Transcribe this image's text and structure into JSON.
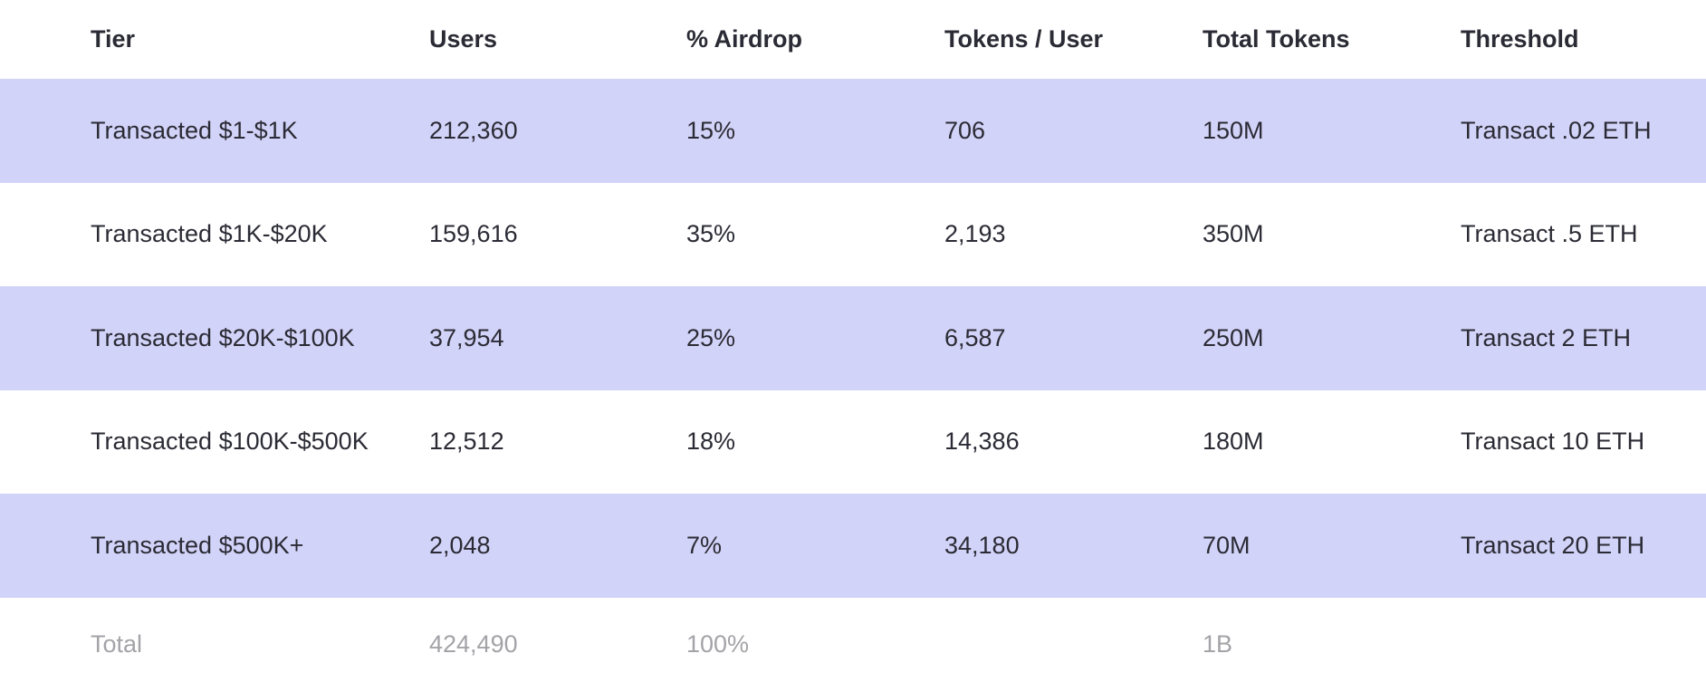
{
  "headers": [
    "Tier",
    "Users",
    "% Airdrop",
    "Tokens / User",
    "Total Tokens",
    "Threshold"
  ],
  "rows": [
    [
      "Transacted $1-$1K",
      "212,360",
      "15%",
      "706",
      "150M",
      "Transact .02 ETH"
    ],
    [
      "Transacted $1K-$20K",
      "159,616",
      "35%",
      "2,193",
      "350M",
      "Transact .5 ETH"
    ],
    [
      "Transacted $20K-$100K",
      "37,954",
      "25%",
      "6,587",
      "250M",
      "Transact 2 ETH"
    ],
    [
      "Transacted $100K-$500K",
      "12,512",
      "18%",
      "14,386",
      "180M",
      "Transact 10 ETH"
    ],
    [
      "Transacted $500K+",
      "2,048",
      "7%",
      "34,180",
      "70M",
      "Transact 20 ETH"
    ]
  ],
  "total": [
    "Total",
    "424,490",
    "100%",
    "",
    "1B",
    ""
  ],
  "colors": {
    "row_highlight": "#d2d3f8",
    "text": "#2b2b35",
    "total_text": "#a3a3a8"
  }
}
